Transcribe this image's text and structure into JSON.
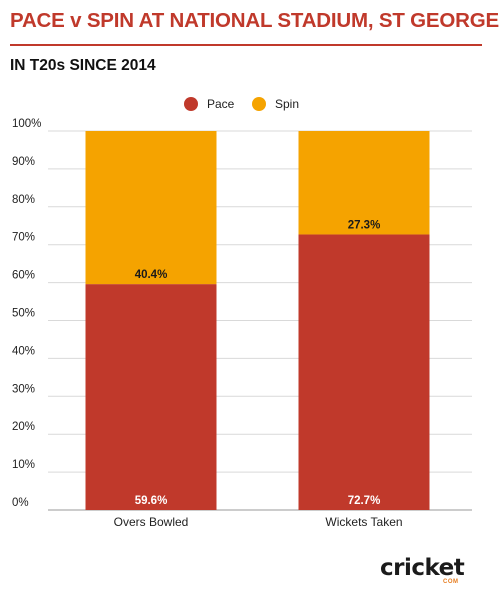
{
  "header": {
    "title": "PACE v SPIN AT NATIONAL STADIUM, ST GEORGE'S",
    "subtitle": "IN T20s SINCE 2014"
  },
  "logo": {
    "word": "cricket",
    "suffix": "COM"
  },
  "chart_data": {
    "type": "bar",
    "stacked": true,
    "categories": [
      "Overs Bowled",
      "Wickets Taken"
    ],
    "series": [
      {
        "name": "Pace",
        "color": "#c0392b",
        "values": [
          59.6,
          72.7
        ],
        "labels": [
          "59.6%",
          "72.7%"
        ]
      },
      {
        "name": "Spin",
        "color": "#f5a300",
        "values": [
          40.4,
          27.3
        ],
        "labels": [
          "40.4%",
          "27.3%"
        ]
      }
    ],
    "ylim": [
      0,
      100
    ],
    "yticks": [
      "0%",
      "10%",
      "20%",
      "30%",
      "40%",
      "50%",
      "60%",
      "70%",
      "80%",
      "90%",
      "100%"
    ],
    "grid": true,
    "legend": "top-center"
  }
}
